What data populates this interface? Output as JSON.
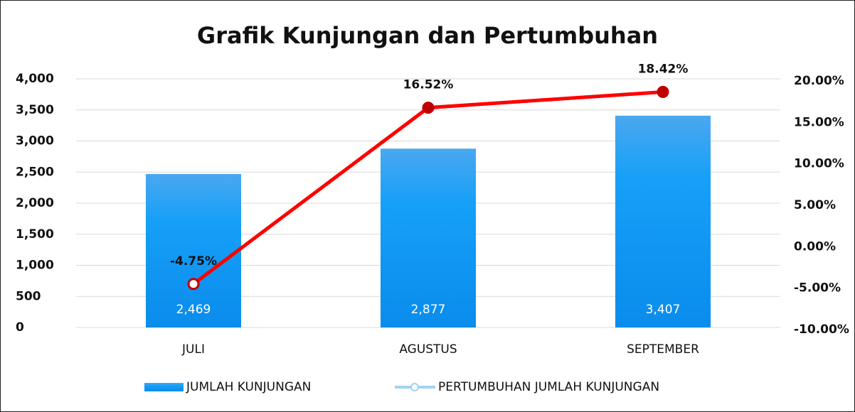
{
  "chart_data": {
    "type": "bar",
    "title": "Grafik Kunjungan dan Pertumbuhan",
    "categories": [
      "JULI",
      "AGUSTUS",
      "SEPTEMBER"
    ],
    "series": [
      {
        "name": "JUMLAH KUNJUNGAN",
        "type": "bar",
        "color": "#1a9ff5",
        "values": [
          2469,
          2877,
          3407
        ],
        "value_labels": [
          "2,469",
          "2,877",
          "3,407"
        ]
      },
      {
        "name": "PERTUMBUHAN JUMLAH KUNJUNGAN",
        "type": "line",
        "axis": "y2",
        "color": "#ff0000",
        "values": [
          -4.75,
          16.52,
          18.42
        ],
        "value_labels": [
          "-4.75%",
          "16.52%",
          "18.42%"
        ]
      }
    ],
    "ylim": [
      0,
      4000
    ],
    "yticks": [
      0,
      500,
      {
        "value": 1000,
        "label": "1,000"
      },
      {
        "value": 1500,
        "label": "1,500"
      },
      {
        "value": 2000,
        "label": "2,000"
      },
      {
        "value": 2500,
        "label": "2,500"
      },
      {
        "value": 3000,
        "label": "3,000"
      },
      {
        "value": 3500,
        "label": "3,500"
      },
      {
        "value": 4000,
        "label": "4,000"
      }
    ],
    "y2lim": [
      -10,
      20
    ],
    "y2ticks": [
      {
        "value": -10,
        "label": "-10.00%"
      },
      {
        "value": -5,
        "label": "-5.00%"
      },
      {
        "value": 0,
        "label": "0.00%"
      },
      {
        "value": 5,
        "label": "5.00%"
      },
      {
        "value": 10,
        "label": "10.00%"
      },
      {
        "value": 15,
        "label": "15.00%"
      },
      {
        "value": 20,
        "label": "20.00%"
      }
    ],
    "grid": true,
    "legend": "bottom"
  }
}
